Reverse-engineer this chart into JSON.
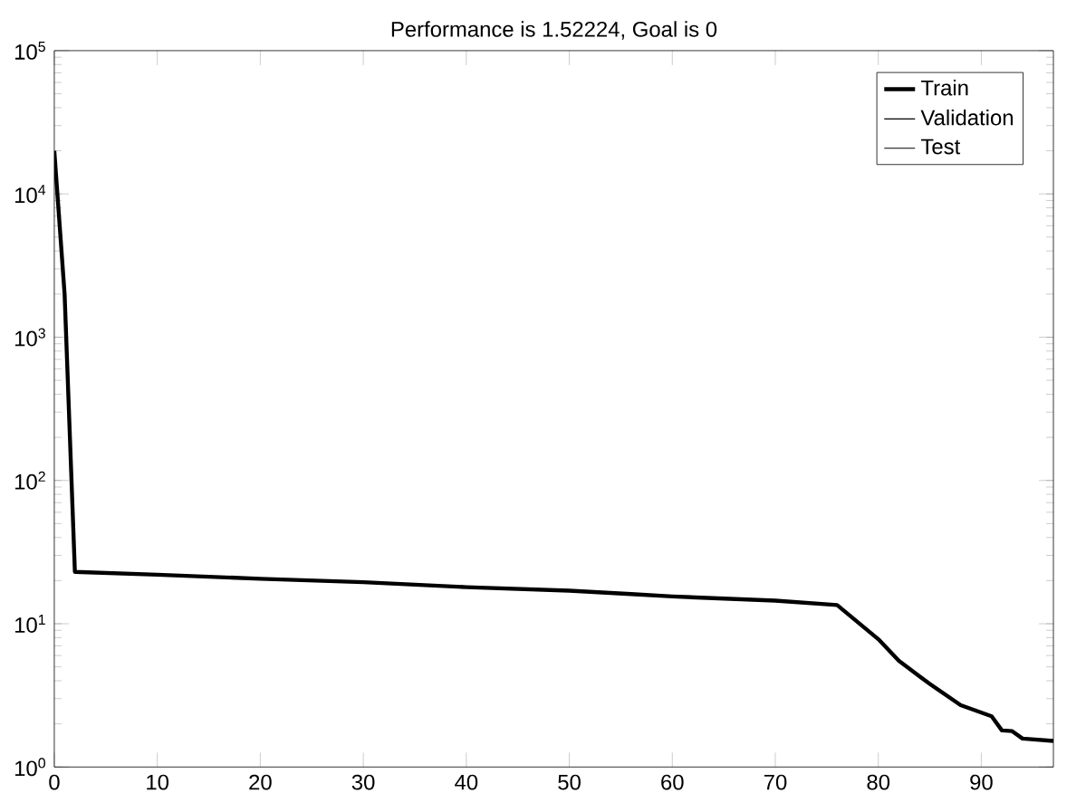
{
  "chart_data": {
    "type": "line",
    "title": "Performance is 1.52224, Goal is 0",
    "log": "y",
    "legend": "top right",
    "x": [
      0,
      1,
      2,
      10,
      20,
      30,
      40,
      50,
      56,
      60,
      70,
      76,
      80,
      82,
      85,
      88,
      91,
      92,
      93,
      94,
      97
    ],
    "series": [
      {
        "name": "Train",
        "color": "#000000",
        "values": [
          20000,
          2000,
          23,
          22,
          20.6,
          19.5,
          18,
          17,
          16.1,
          15.5,
          14.5,
          13.5,
          7.8,
          5.5,
          3.8,
          2.7,
          2.26,
          1.8,
          1.78,
          1.58,
          1.52
        ]
      },
      {
        "name": "Validation",
        "color": "#000000",
        "values": [
          null,
          null,
          null,
          null,
          null,
          null,
          null,
          null,
          null,
          null,
          null,
          null,
          null,
          null,
          null,
          null,
          null,
          null,
          null,
          null,
          null
        ]
      },
      {
        "name": "Test",
        "color": "#000000",
        "values": [
          null,
          null,
          null,
          null,
          null,
          null,
          null,
          null,
          null,
          null,
          null,
          null,
          null,
          null,
          null,
          null,
          null,
          null,
          null,
          null,
          null
        ]
      }
    ],
    "xlim": [
      0,
      97
    ],
    "ylim": [
      1,
      100000
    ],
    "xticks": [
      0,
      10,
      20,
      30,
      40,
      50,
      60,
      70,
      80,
      90
    ],
    "yticks": [
      {
        "value": 1,
        "label": "10$^{0}$"
      },
      {
        "value": 10,
        "label": "10$^{1}$"
      },
      {
        "value": 100,
        "label": "10$^{2}$"
      },
      {
        "value": 1000,
        "label": "10$^{3}$"
      },
      {
        "value": 10000,
        "label": "10$^{4}$"
      },
      {
        "value": 100000,
        "label": "10$^{5}$"
      }
    ]
  }
}
